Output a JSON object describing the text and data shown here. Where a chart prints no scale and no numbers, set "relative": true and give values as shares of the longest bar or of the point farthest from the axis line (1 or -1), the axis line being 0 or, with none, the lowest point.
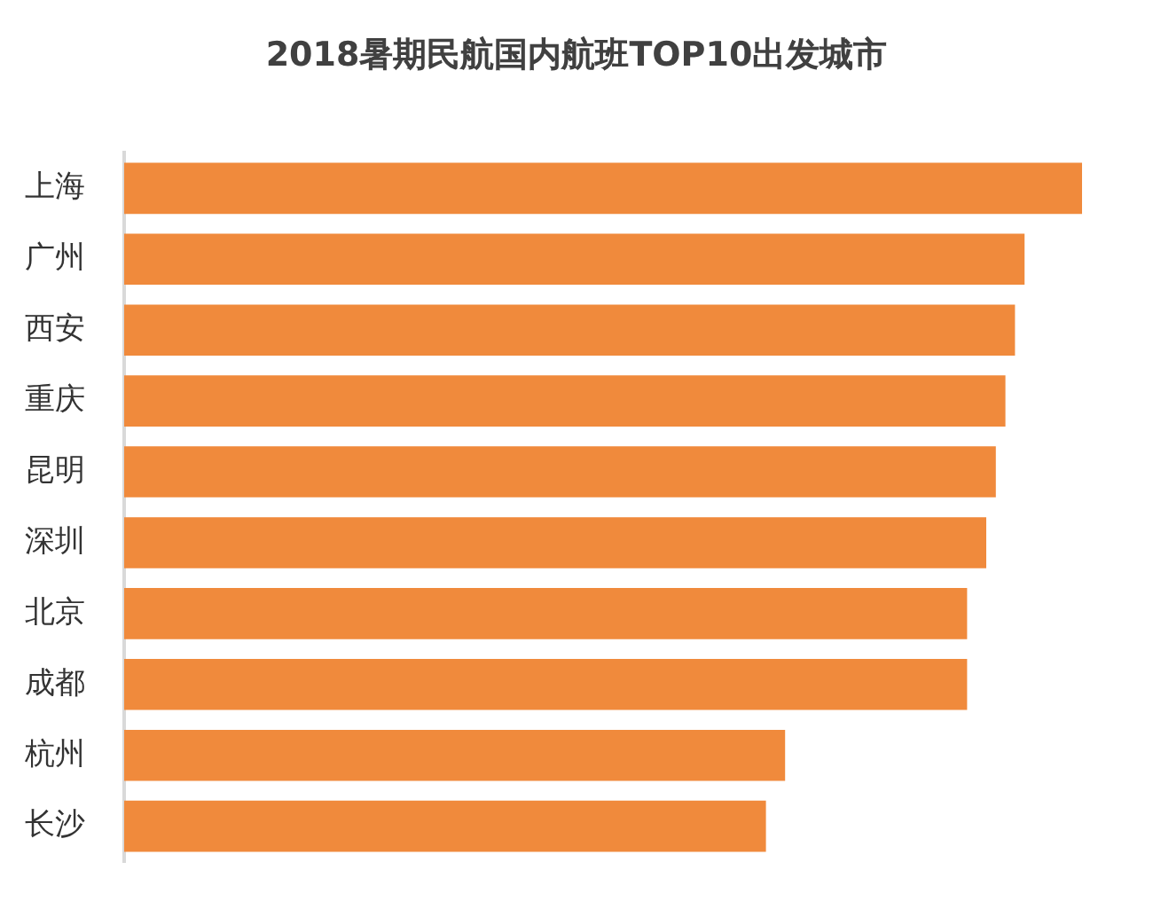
{
  "chart_data": {
    "type": "bar",
    "orientation": "horizontal",
    "relative": true,
    "title": "2018暑期民航国内航班TOP10出发城市",
    "categories": [
      "上海",
      "广州",
      "西安",
      "重庆",
      "昆明",
      "深圳",
      "北京",
      "成都",
      "杭州",
      "长沙"
    ],
    "values": [
      1,
      0.94,
      0.93,
      0.92,
      0.91,
      0.9,
      0.88,
      0.88,
      0.69,
      0.67
    ],
    "color": "#f08a3c"
  }
}
